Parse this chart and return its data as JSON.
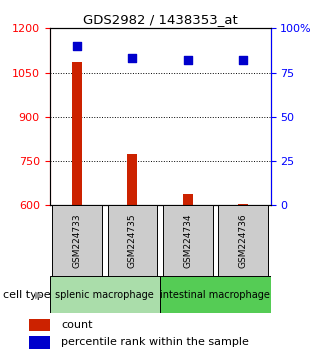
{
  "title": "GDS2982 / 1438353_at",
  "samples": [
    "GSM224733",
    "GSM224735",
    "GSM224734",
    "GSM224736"
  ],
  "counts": [
    1085,
    775,
    638,
    605
  ],
  "percentile_ranks": [
    90,
    83,
    82,
    82
  ],
  "ylim_left": [
    600,
    1200
  ],
  "ylim_right": [
    0,
    100
  ],
  "yticks_left": [
    600,
    750,
    900,
    1050,
    1200
  ],
  "yticks_right": [
    0,
    25,
    50,
    75,
    100
  ],
  "bar_color": "#cc2200",
  "dot_color": "#0000cc",
  "groups": [
    {
      "label": "splenic macrophage",
      "samples_idx": [
        0,
        1
      ],
      "color": "#aaddaa"
    },
    {
      "label": "intestinal macrophage",
      "samples_idx": [
        2,
        3
      ],
      "color": "#55cc55"
    }
  ],
  "x_positions": [
    1,
    2,
    3,
    4
  ],
  "bar_width": 0.18,
  "dot_size": 30,
  "legend_red_label": "count",
  "legend_blue_label": "percentile rank within the sample",
  "cell_type_label": "cell type"
}
